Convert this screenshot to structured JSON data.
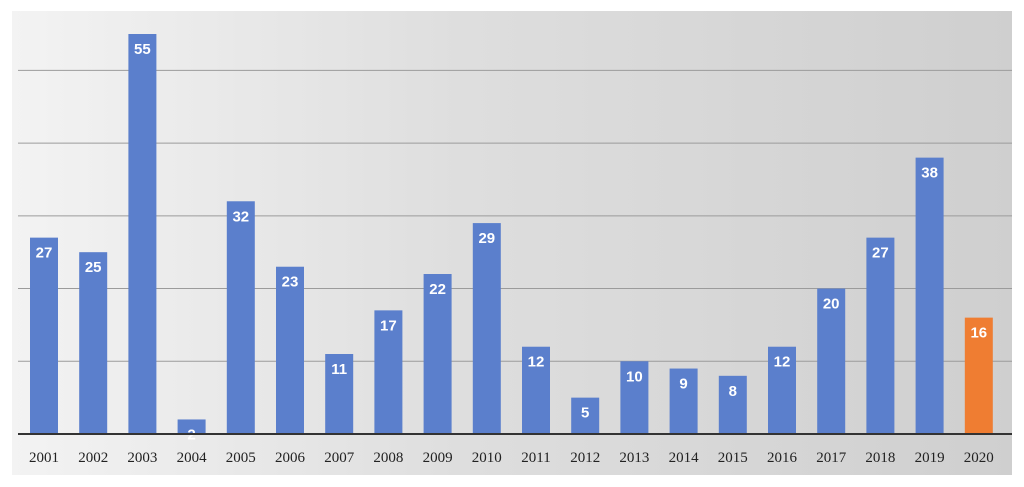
{
  "chart_data": {
    "type": "bar",
    "title": "",
    "xlabel": "",
    "ylabel": "",
    "ylim": [
      0,
      55
    ],
    "grid": true,
    "categories": [
      "2001",
      "2002",
      "2003",
      "2004",
      "2005",
      "2006",
      "2007",
      "2008",
      "2009",
      "2010",
      "2011",
      "2012",
      "2013",
      "2014",
      "2015",
      "2016",
      "2017",
      "2018",
      "2019",
      "2020"
    ],
    "values": [
      27,
      25,
      55,
      2,
      32,
      23,
      11,
      17,
      22,
      29,
      12,
      5,
      10,
      9,
      8,
      12,
      20,
      27,
      38,
      16
    ],
    "value_labels": [
      "27",
      "25",
      "55",
      "2",
      "32",
      "23",
      "11",
      "17",
      "22",
      "29",
      "12",
      "5",
      "10",
      "9",
      "8",
      "12",
      "20",
      "27",
      "38",
      "16"
    ],
    "colors": {
      "bar": "#5b7fcc",
      "highlight": "#ef7d32",
      "grid": "#9b9b9b",
      "axis": "#333333"
    },
    "highlight_index": 19
  }
}
